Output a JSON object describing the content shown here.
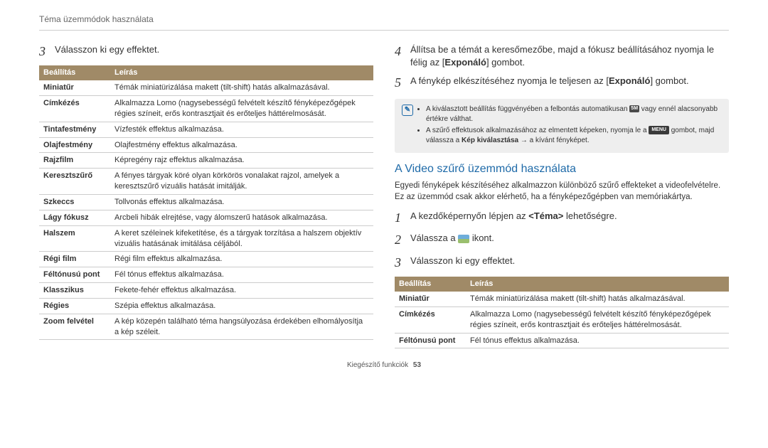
{
  "breadcrumb": "Téma üzemmódok használata",
  "footer": {
    "label": "Kiegészítő funkciók",
    "page": "53"
  },
  "colors": {
    "table_header_bg": "#a08a67",
    "table_header_fg": "#ffffff",
    "link_blue": "#1e6aa8",
    "note_bg": "#eeeeee"
  },
  "left": {
    "step3": {
      "num": "3",
      "text": "Válasszon ki egy effektet."
    },
    "table": {
      "headers": [
        "Beállítás",
        "Leírás"
      ],
      "rows": [
        [
          "Miniatűr",
          "Témák miniatürizálása makett (tilt-shift) hatás alkalmazásával."
        ],
        [
          "Címkézés",
          "Alkalmazza Lomo (nagysebességű felvételt készítő fényképezőgépek régies színeit, erős kontrasztjait és erőteljes háttérelmosását."
        ],
        [
          "Tintafestmény",
          "Vízfesték effektus alkalmazása."
        ],
        [
          "Olajfestmény",
          "Olajfestmény effektus alkalmazása."
        ],
        [
          "Rajzfilm",
          "Képregény rajz effektus alkalmazása."
        ],
        [
          "Keresztszűrő",
          "A fényes tárgyak köré olyan körkörös vonalakat rajzol, amelyek a keresztszűrő vizuális hatását imitálják."
        ],
        [
          "Szkeccs",
          "Tollvonás effektus alkalmazása."
        ],
        [
          "Lágy fókusz",
          "Arcbeli hibák elrejtése, vagy álomszerű hatások alkalmazása."
        ],
        [
          "Halszem",
          "A keret széleinek kifeketítése, és a tárgyak torzítása a halszem objektív vizuális hatásának imitálása céljából."
        ],
        [
          "Régi film",
          "Régi film effektus alkalmazása."
        ],
        [
          "Féltónusú pont",
          "Fél tónus effektus alkalmazása."
        ],
        [
          "Klasszikus",
          "Fekete-fehér effektus alkalmazása."
        ],
        [
          "Régies",
          "Szépia effektus alkalmazása."
        ],
        [
          "Zoom felvétel",
          "A kép közepén található téma hangsúlyozása érdekében elhomályosítja a kép széleit."
        ]
      ]
    }
  },
  "right": {
    "step4": {
      "num": "4",
      "pre": "Állítsa be a témát a keresőmezőbe, majd a fókusz beállításához nyomja le félig az [",
      "bold": "Exponáló",
      "post": "] gombot."
    },
    "step5": {
      "num": "5",
      "pre": "A fénykép elkészítéséhez nyomja le teljesen az [",
      "bold": "Exponáló",
      "post": "] gombot."
    },
    "note": {
      "item1_pre": "A kiválasztott beállítás függvényében a felbontás automatikusan ",
      "item1_badge": "5M",
      "item1_post": " vagy ennél alacsonyabb értékre válthat.",
      "item2_pre": "A szűrő effektusok alkalmazásához az elmentett képeken, nyomja le a ",
      "item2_badge": "MENU",
      "item2_mid": " gombot, majd válassza a ",
      "item2_bold": "Kép kiválasztása",
      "item2_post": " → a kívánt fényképet."
    },
    "section_title": "A Video szűrő üzemmód használata",
    "section_desc": "Egyedi fényképek készítéséhez alkalmazzon különböző szűrő effekteket a videofelvételre. Ez az üzemmód csak akkor elérhető, ha a fényképezőgépben van memóriakártya.",
    "vstep1": {
      "num": "1",
      "pre": "A kezdőképernyőn lépjen az ",
      "bold": "<Téma>",
      "post": " lehetőségre."
    },
    "vstep2": {
      "num": "2",
      "pre": "Válassza a ",
      "post": " ikont."
    },
    "vstep3": {
      "num": "3",
      "text": "Válasszon ki egy effektet."
    },
    "table": {
      "headers": [
        "Beállítás",
        "Leírás"
      ],
      "rows": [
        [
          "Miniatűr",
          "Témák miniatürizálása makett (tilt-shift) hatás alkalmazásával."
        ],
        [
          "Címkézés",
          "Alkalmazza Lomo (nagysebességű felvételt készítő fényképezőgépek régies színeit, erős kontrasztjait és erőteljes háttérelmosását."
        ],
        [
          "Féltónusú pont",
          "Fél tónus effektus alkalmazása."
        ]
      ]
    }
  }
}
